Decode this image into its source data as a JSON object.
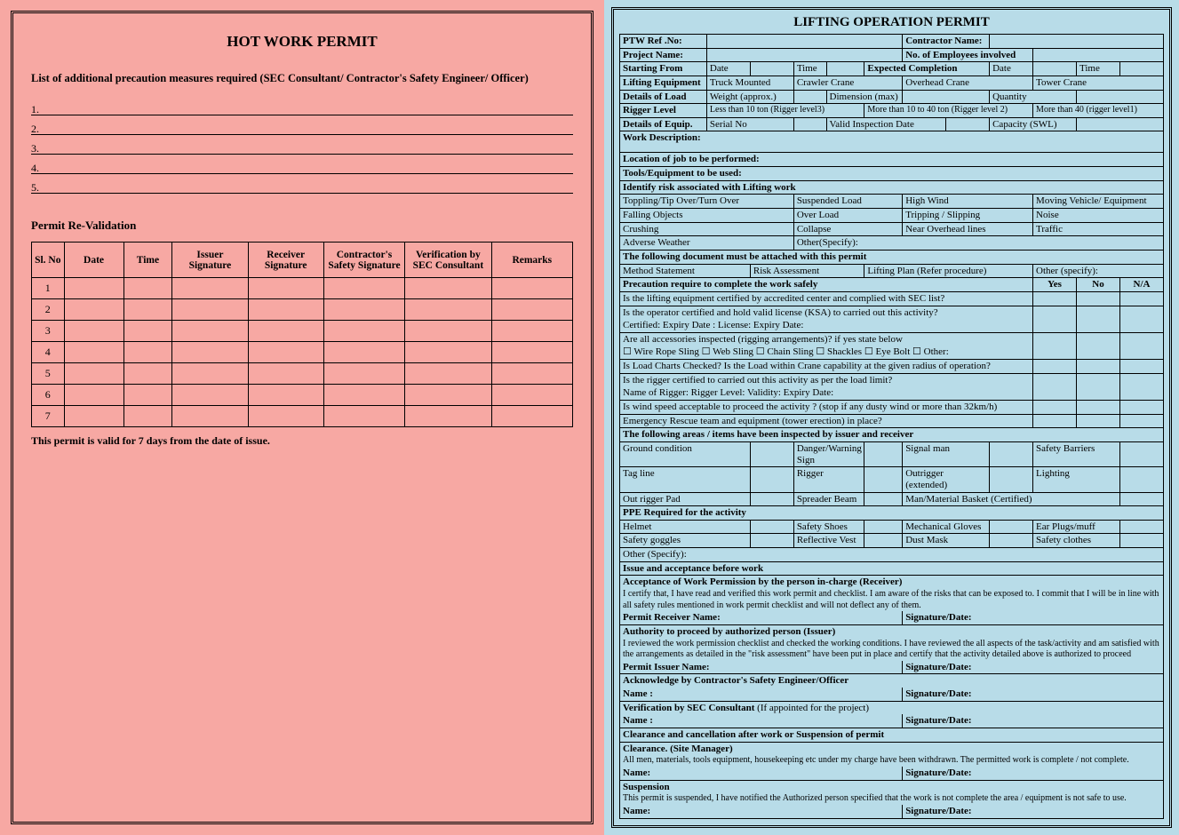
{
  "left": {
    "title": "HOT WORK PERMIT",
    "subtitle": "List of additional precaution measures required (SEC Consultant/ Contractor's Safety Engineer/ Officer)",
    "lines": [
      "1.",
      "2.",
      "3.",
      "4.",
      "5."
    ],
    "revalidation_header": "Permit Re-Validation",
    "cols": [
      "Sl. No",
      "Date",
      "Time",
      "Issuer Signature",
      "Receiver Signature",
      "Contractor's Safety Signature",
      "Verification by SEC Consultant",
      "Remarks"
    ],
    "rows": [
      "1",
      "2",
      "3",
      "4",
      "5",
      "6",
      "7"
    ],
    "note": "This permit is valid for 7 days from the date of issue."
  },
  "right": {
    "title": "LIFTING OPERATION PERMIT",
    "hdr": {
      "ptw": "PTW Ref .No:",
      "contractor": "Contractor Name:",
      "project": "Project Name:",
      "employees": "No. of Employees involved",
      "start": "Starting From",
      "date": "Date",
      "time": "Time",
      "expected": "Expected Completion",
      "equip": "Lifting Equipment",
      "truck": "Truck Mounted",
      "crawler": "Crawler Crane",
      "overhead": "Overhead Crane",
      "tower": "Tower Crane",
      "load": "Details of Load",
      "weight": "Weight (approx.)",
      "dim": "Dimension (max)",
      "qty": "Quantity",
      "rigger": "Rigger Level",
      "r3": "Less than 10 ton  (Rigger  level3)",
      "r2": "More than 10 to 40 ton (Rigger level 2)",
      "r1": "More than 40 (rigger level1)",
      "deq": "Details of Equip.",
      "serial": "Serial  No",
      "insp": "Valid Inspection Date",
      "cap": "Capacity (SWL)",
      "wd": "Work Description:",
      "loc": "Location of job to be performed:",
      "tools": "Tools/Equipment to be used:"
    },
    "risk": {
      "title": "Identify risk associated with Lifting  work",
      "r1": [
        "Toppling/Tip Over/Turn Over",
        "Suspended Load",
        "High Wind",
        "Moving Vehicle/ Equipment"
      ],
      "r2": [
        "Falling Objects",
        "Over Load",
        "Tripping / Slipping",
        "Noise"
      ],
      "r3": [
        "Crushing",
        "Collapse",
        "Near Overhead lines",
        "Traffic"
      ],
      "r4": [
        "Adverse Weather",
        "Other(Specify):"
      ]
    },
    "docs": {
      "title": "The following  document must be attached with this permit",
      "items": [
        "Method Statement",
        "Risk Assessment",
        "Lifting Plan (Refer procedure)",
        "Other (specify):"
      ]
    },
    "prec": {
      "title": "Precaution require to complete the work safely",
      "yes": "Yes",
      "no": "No",
      "na": "N/A",
      "q1": "Is the lifting equipment certified by accredited center and complied with SEC  list?",
      "q2": "Is the operator certified and hold valid license (KSA) to carried out this activity?",
      "q2b": "Certified: Expiry Date :                               License:  Expiry Date:",
      "q3": "Are all accessories inspected (rigging arrangements)? if yes state below",
      "q3b_a": "Wire Rope Sling",
      "q3b_b": "Web Sling",
      "q3b_c": "Chain Sling",
      "q3b_d": "Shackles",
      "q3b_e": "Eye Bolt",
      "q3b_f": "Other:",
      "q4": "Is Load Charts Checked? Is the Load within Crane capability at the given radius of operation?",
      "q5": "Is the rigger certified to carried out this activity as per the load limit?",
      "q5b": "Name of Rigger:                                   Rigger Level:                     Validity:  Expiry Date:",
      "q6": "Is wind speed  acceptable to proceed the activity ? (stop if any dusty wind or more than 32km/h)",
      "q7": "Emergency Rescue team and equipment (tower erection) in place?"
    },
    "insp": {
      "title": "The following areas / items have been inspected by issuer and receiver",
      "r1": [
        "Ground condition",
        "Danger/Warning Sign",
        "Signal man",
        "Safety Barriers"
      ],
      "r2": [
        "Tag line",
        "Rigger",
        "Outrigger (extended)",
        "Lighting"
      ],
      "r3": [
        "Out rigger Pad",
        "Spreader Beam",
        "Man/Material Basket (Certified)"
      ]
    },
    "ppe": {
      "title": "PPE Required for the activity",
      "r1": [
        "Helmet",
        "Safety Shoes",
        "Mechanical Gloves",
        "Ear Plugs/muff"
      ],
      "r2": [
        "Safety goggles",
        "Reflective Vest",
        "Dust Mask",
        "Safety clothes"
      ],
      "other": "Other (Specify):"
    },
    "sig": {
      "issue_title": "Issue and acceptance before work",
      "recv_title": "Acceptance of Work Permission by the person in-charge (Receiver)",
      "recv_text": "I certify that, I have read and verified this work permit and checklist. I am aware of the risks that can be exposed to. I commit that I will be in line with all safety rules mentioned in work permit checklist and will not deflect any of them.",
      "recv_name": "Permit Receiver Name:",
      "sigdate": "Signature/Date:",
      "auth_title": "Authority to proceed by authorized person (Issuer)",
      "auth_text": "I reviewed the work permission checklist and checked the working conditions. I have reviewed the all aspects of the task/activity and am satisfied with the arrangements as detailed in the \"risk assessment\" have been put in place and certify that the activity detailed above  is authorized to proceed",
      "issuer_name": "Permit Issuer Name:",
      "ack_title": "Acknowledge by Contractor's Safety Engineer/Officer",
      "name": "Name :",
      "ver_title": "Verification by SEC Consultant",
      "ver_sub": "(If appointed for the project)",
      "clear_title": "Clearance and cancellation after work or Suspension of permit",
      "clear_sub": "Clearance. (Site Manager)",
      "clear_text": "All men, materials, tools equipment, housekeeping  etc under my charge have been withdrawn. The permitted work is complete / not complete.",
      "name2": "Name:",
      "susp_title": "Suspension",
      "susp_text": "This permit is suspended, I have notified the Authorized person specified that the work is not complete the area / equipment is not safe to use."
    }
  },
  "colors": {
    "left_bg": "#f7a8a3",
    "right_bg": "#b8dce8",
    "border": "#000000"
  }
}
